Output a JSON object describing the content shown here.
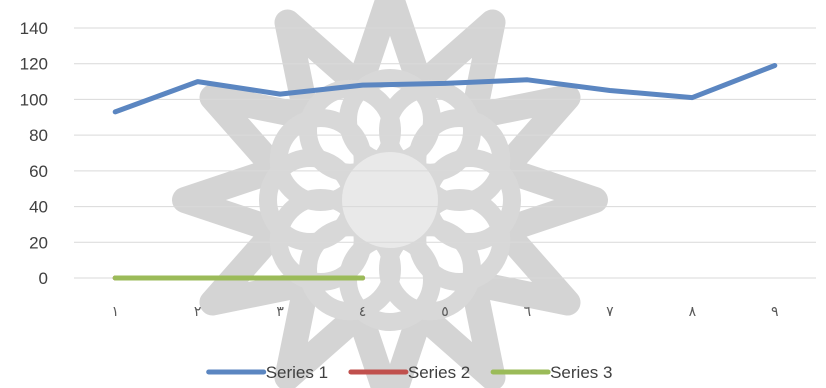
{
  "chart_data": {
    "type": "line",
    "title": "",
    "xlabel": "",
    "ylabel": "",
    "categories": [
      "١",
      "٢",
      "٣",
      "٤",
      "٥",
      "٦",
      "٧",
      "٨",
      "٩"
    ],
    "ylim": [
      0,
      140
    ],
    "yticks": [
      0,
      20,
      40,
      60,
      80,
      100,
      120,
      140
    ],
    "grid": true,
    "legend_position": "bottom",
    "watermark": "geometric-star-rosette",
    "series": [
      {
        "name": "Series 1",
        "color": "#5b86c1",
        "values": [
          93,
          110,
          103,
          108,
          109,
          111,
          105,
          101,
          119
        ]
      },
      {
        "name": "Series 2",
        "color": "#c0504d",
        "values": [
          0,
          0,
          0,
          0,
          null,
          null,
          null,
          null,
          null
        ]
      },
      {
        "name": "Series 3",
        "color": "#9bbb59",
        "values": [
          0,
          0,
          0,
          0,
          null,
          null,
          null,
          null,
          null
        ]
      }
    ]
  }
}
